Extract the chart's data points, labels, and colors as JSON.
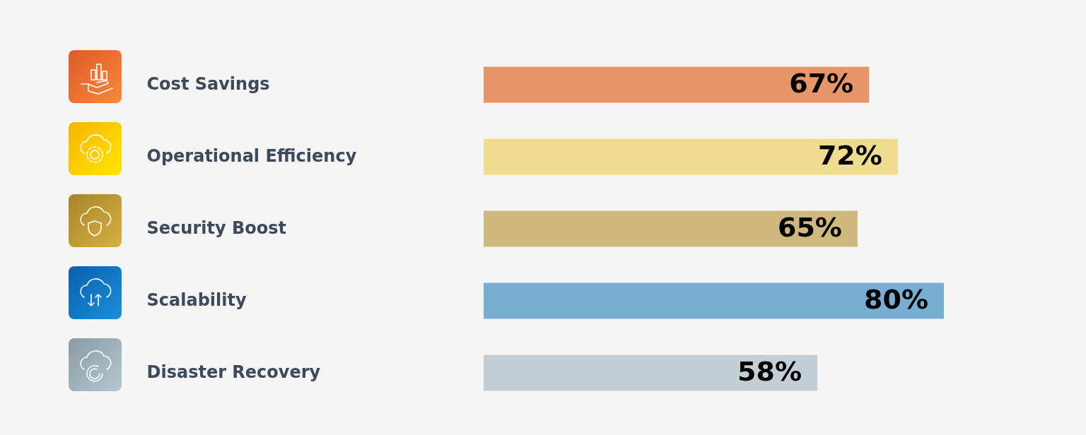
{
  "chart_data": {
    "type": "bar",
    "orientation": "horizontal",
    "categories": [
      "Cost Savings",
      "Operational Efficiency",
      "Security Boost",
      "Scalability",
      "Disaster Recovery"
    ],
    "values": [
      67,
      72,
      65,
      80,
      58
    ],
    "colors": [
      "#e8956a",
      "#f0dc8e",
      "#cfb87e",
      "#79aed3",
      "#c3ced5"
    ],
    "value_labels": [
      "67%",
      "72%",
      "65%",
      "80%",
      "58%"
    ],
    "tick_labels": "y"
  }
}
